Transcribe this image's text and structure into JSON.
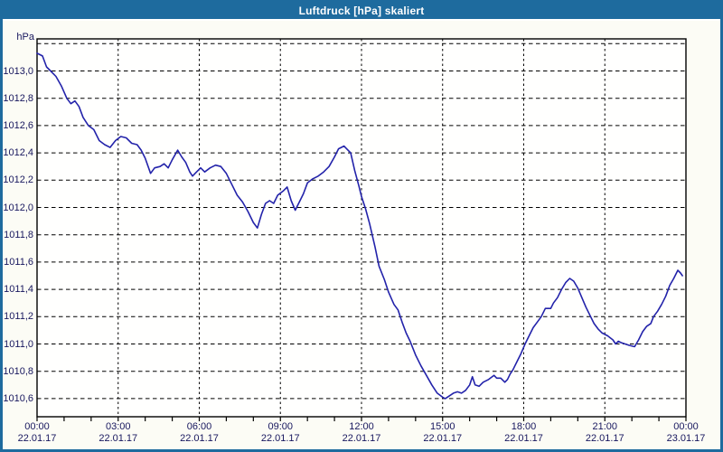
{
  "window": {
    "title": "Luftdruck [hPa] skaliert"
  },
  "colors": {
    "frame": "#1e6b9e",
    "title-text": "#ffffff",
    "content-bg": "#fcfcf5",
    "plot-bg": "#fffffe",
    "grid": "#000000",
    "label": "#17175e",
    "line": "#2323aa"
  },
  "chart_data": {
    "type": "line",
    "title": "Luftdruck [hPa] skaliert",
    "ylabel": "hPa",
    "xlabel": "",
    "grid": "dashed-both-axes",
    "legend": "none",
    "xlim_hours": [
      0,
      24
    ],
    "ylim": [
      1010.47,
      1013.23
    ],
    "y_grid": {
      "top": 1013.2,
      "bottom": 1010.6,
      "step": 0.2
    },
    "x_major_gridline_hours": [
      3,
      6,
      9,
      12,
      15,
      18,
      21
    ],
    "x_minor_tick_every_hours": 1,
    "y_ticks": [
      {
        "label": "1013,0",
        "value": 1013.0
      },
      {
        "label": "1012,8",
        "value": 1012.8
      },
      {
        "label": "1012,6",
        "value": 1012.6
      },
      {
        "label": "1012,4",
        "value": 1012.4
      },
      {
        "label": "1012,2",
        "value": 1012.2
      },
      {
        "label": "1012,0",
        "value": 1012.0
      },
      {
        "label": "1011,8",
        "value": 1011.8
      },
      {
        "label": "1011,6",
        "value": 1011.6
      },
      {
        "label": "1011,4",
        "value": 1011.4
      },
      {
        "label": "1011,2",
        "value": 1011.2
      },
      {
        "label": "1011,0",
        "value": 1011.0
      },
      {
        "label": "1010,8",
        "value": 1010.8
      },
      {
        "label": "1010,6",
        "value": 1010.6
      }
    ],
    "x_ticks": [
      {
        "hour": 0,
        "time": "00:00",
        "date": "22.01.17"
      },
      {
        "hour": 3,
        "time": "03:00",
        "date": "22.01.17"
      },
      {
        "hour": 6,
        "time": "06:00",
        "date": "22.01.17"
      },
      {
        "hour": 9,
        "time": "09:00",
        "date": "22.01.17"
      },
      {
        "hour": 12,
        "time": "12:00",
        "date": "22.01.17"
      },
      {
        "hour": 15,
        "time": "15:00",
        "date": "22.01.17"
      },
      {
        "hour": 18,
        "time": "18:00",
        "date": "22.01.17"
      },
      {
        "hour": 21,
        "time": "21:00",
        "date": "22.01.17"
      },
      {
        "hour": 24,
        "time": "00:00",
        "date": "23.01.17"
      }
    ],
    "series": [
      {
        "name": "Luftdruck",
        "unit": "hPa",
        "points": [
          [
            0.0,
            1013.13
          ],
          [
            0.2,
            1013.11
          ],
          [
            0.35,
            1013.03
          ],
          [
            0.5,
            1013.0
          ],
          [
            0.7,
            1012.96
          ],
          [
            0.9,
            1012.89
          ],
          [
            1.1,
            1012.8
          ],
          [
            1.25,
            1012.76
          ],
          [
            1.4,
            1012.78
          ],
          [
            1.55,
            1012.74
          ],
          [
            1.7,
            1012.66
          ],
          [
            1.9,
            1012.6
          ],
          [
            2.1,
            1012.57
          ],
          [
            2.3,
            1012.49
          ],
          [
            2.5,
            1012.46
          ],
          [
            2.7,
            1012.44
          ],
          [
            2.9,
            1012.49
          ],
          [
            3.1,
            1012.52
          ],
          [
            3.3,
            1012.51
          ],
          [
            3.5,
            1012.47
          ],
          [
            3.7,
            1012.46
          ],
          [
            3.85,
            1012.42
          ],
          [
            4.0,
            1012.36
          ],
          [
            4.2,
            1012.25
          ],
          [
            4.35,
            1012.29
          ],
          [
            4.55,
            1012.3
          ],
          [
            4.7,
            1012.32
          ],
          [
            4.85,
            1012.29
          ],
          [
            5.0,
            1012.35
          ],
          [
            5.2,
            1012.42
          ],
          [
            5.35,
            1012.37
          ],
          [
            5.5,
            1012.33
          ],
          [
            5.65,
            1012.26
          ],
          [
            5.75,
            1012.23
          ],
          [
            5.9,
            1012.26
          ],
          [
            6.05,
            1012.29
          ],
          [
            6.2,
            1012.26
          ],
          [
            6.4,
            1012.29
          ],
          [
            6.6,
            1012.31
          ],
          [
            6.8,
            1012.3
          ],
          [
            7.0,
            1012.25
          ],
          [
            7.2,
            1012.17
          ],
          [
            7.4,
            1012.09
          ],
          [
            7.6,
            1012.04
          ],
          [
            7.8,
            1011.97
          ],
          [
            8.0,
            1011.89
          ],
          [
            8.15,
            1011.85
          ],
          [
            8.3,
            1011.95
          ],
          [
            8.45,
            1012.03
          ],
          [
            8.6,
            1012.05
          ],
          [
            8.75,
            1012.03
          ],
          [
            8.9,
            1012.09
          ],
          [
            9.1,
            1012.12
          ],
          [
            9.25,
            1012.15
          ],
          [
            9.4,
            1012.05
          ],
          [
            9.55,
            1011.98
          ],
          [
            9.7,
            1012.04
          ],
          [
            9.85,
            1012.1
          ],
          [
            10.0,
            1012.18
          ],
          [
            10.2,
            1012.21
          ],
          [
            10.4,
            1012.23
          ],
          [
            10.6,
            1012.26
          ],
          [
            10.8,
            1012.3
          ],
          [
            11.0,
            1012.37
          ],
          [
            11.15,
            1012.43
          ],
          [
            11.35,
            1012.45
          ],
          [
            11.5,
            1012.42
          ],
          [
            11.6,
            1012.4
          ],
          [
            11.75,
            1012.27
          ],
          [
            11.9,
            1012.16
          ],
          [
            12.0,
            1012.08
          ],
          [
            12.15,
            1011.99
          ],
          [
            12.3,
            1011.88
          ],
          [
            12.5,
            1011.71
          ],
          [
            12.65,
            1011.57
          ],
          [
            12.85,
            1011.47
          ],
          [
            13.0,
            1011.38
          ],
          [
            13.2,
            1011.29
          ],
          [
            13.35,
            1011.25
          ],
          [
            13.5,
            1011.16
          ],
          [
            13.65,
            1011.08
          ],
          [
            13.8,
            1011.02
          ],
          [
            14.0,
            1010.92
          ],
          [
            14.2,
            1010.84
          ],
          [
            14.4,
            1010.77
          ],
          [
            14.6,
            1010.7
          ],
          [
            14.8,
            1010.64
          ],
          [
            15.0,
            1010.61
          ],
          [
            15.1,
            1010.6
          ],
          [
            15.25,
            1010.62
          ],
          [
            15.4,
            1010.64
          ],
          [
            15.55,
            1010.65
          ],
          [
            15.7,
            1010.64
          ],
          [
            15.85,
            1010.66
          ],
          [
            16.0,
            1010.7
          ],
          [
            16.1,
            1010.76
          ],
          [
            16.2,
            1010.7
          ],
          [
            16.35,
            1010.69
          ],
          [
            16.5,
            1010.72
          ],
          [
            16.7,
            1010.74
          ],
          [
            16.9,
            1010.77
          ],
          [
            17.0,
            1010.75
          ],
          [
            17.15,
            1010.75
          ],
          [
            17.3,
            1010.72
          ],
          [
            17.4,
            1010.74
          ],
          [
            17.5,
            1010.78
          ],
          [
            17.6,
            1010.81
          ],
          [
            17.75,
            1010.87
          ],
          [
            17.9,
            1010.93
          ],
          [
            18.05,
            1011.0
          ],
          [
            18.2,
            1011.06
          ],
          [
            18.35,
            1011.12
          ],
          [
            18.5,
            1011.16
          ],
          [
            18.65,
            1011.2
          ],
          [
            18.8,
            1011.26
          ],
          [
            19.0,
            1011.26
          ],
          [
            19.1,
            1011.3
          ],
          [
            19.25,
            1011.34
          ],
          [
            19.4,
            1011.4
          ],
          [
            19.55,
            1011.45
          ],
          [
            19.7,
            1011.48
          ],
          [
            19.85,
            1011.46
          ],
          [
            20.0,
            1011.41
          ],
          [
            20.15,
            1011.34
          ],
          [
            20.3,
            1011.27
          ],
          [
            20.45,
            1011.21
          ],
          [
            20.6,
            1011.15
          ],
          [
            20.75,
            1011.11
          ],
          [
            20.9,
            1011.08
          ],
          [
            21.1,
            1011.06
          ],
          [
            21.3,
            1011.03
          ],
          [
            21.4,
            1011.0
          ],
          [
            21.5,
            1011.02
          ],
          [
            21.6,
            1011.01
          ],
          [
            21.75,
            1011.0
          ],
          [
            21.9,
            1010.99
          ],
          [
            22.1,
            1010.98
          ],
          [
            22.25,
            1011.03
          ],
          [
            22.4,
            1011.09
          ],
          [
            22.55,
            1011.13
          ],
          [
            22.7,
            1011.15
          ],
          [
            22.8,
            1011.2
          ],
          [
            22.95,
            1011.24
          ],
          [
            23.1,
            1011.29
          ],
          [
            23.25,
            1011.35
          ],
          [
            23.4,
            1011.43
          ],
          [
            23.55,
            1011.48
          ],
          [
            23.7,
            1011.54
          ],
          [
            23.8,
            1011.52
          ],
          [
            23.87,
            1011.5
          ]
        ]
      }
    ]
  }
}
